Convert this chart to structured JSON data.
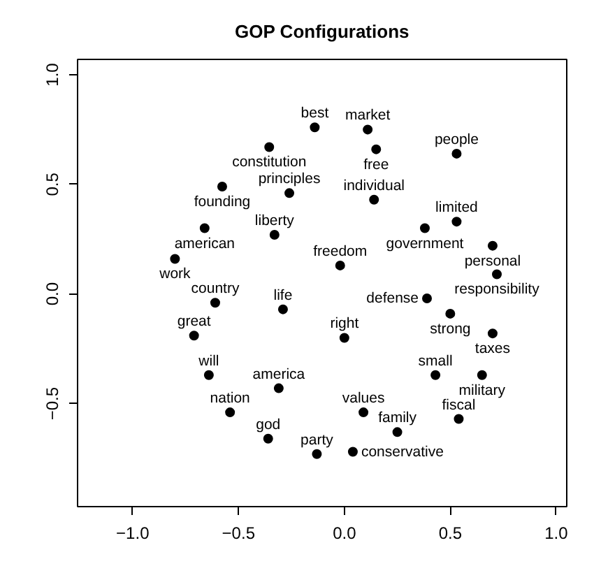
{
  "chart_data": {
    "type": "scatter",
    "title": "GOP Configurations",
    "x": [
      -0.14,
      -0.355,
      -0.577,
      -0.26,
      -0.66,
      -0.33,
      -0.8,
      -0.02,
      0.11,
      0.15,
      0.53,
      0.14,
      0.38,
      0.53,
      0.7,
      0.72,
      0.39,
      0.5,
      0.7,
      0.0,
      0.43,
      0.65,
      0.09,
      0.54,
      0.25,
      0.04,
      -0.13,
      -0.61,
      -0.29,
      -0.71,
      -0.64,
      -0.31,
      -0.54,
      -0.36
    ],
    "series": [
      {
        "color": "#000000",
        "values": [
          0.76,
          0.67,
          0.49,
          0.46,
          0.3,
          0.27,
          0.16,
          0.13,
          0.75,
          0.66,
          0.64,
          0.43,
          0.3,
          0.33,
          0.22,
          0.09,
          -0.02,
          -0.09,
          -0.18,
          -0.2,
          -0.37,
          -0.37,
          -0.54,
          -0.57,
          -0.63,
          -0.72,
          -0.73,
          -0.04,
          -0.07,
          -0.19,
          -0.37,
          -0.43,
          -0.54,
          -0.66
        ]
      }
    ],
    "annotations": [
      {
        "text": "best",
        "x": -0.14,
        "y": 0.76
      },
      {
        "text": "constitution",
        "x": -0.355,
        "y": 0.67
      },
      {
        "text": "founding",
        "x": -0.577,
        "y": 0.49
      },
      {
        "text": "principles",
        "x": -0.26,
        "y": 0.46
      },
      {
        "text": "american",
        "x": -0.66,
        "y": 0.3
      },
      {
        "text": "liberty",
        "x": -0.33,
        "y": 0.27
      },
      {
        "text": "work",
        "x": -0.8,
        "y": 0.16
      },
      {
        "text": "freedom",
        "x": -0.02,
        "y": 0.13
      },
      {
        "text": "market",
        "x": 0.11,
        "y": 0.75
      },
      {
        "text": "free",
        "x": 0.15,
        "y": 0.66
      },
      {
        "text": "people",
        "x": 0.53,
        "y": 0.64
      },
      {
        "text": "individual",
        "x": 0.14,
        "y": 0.43
      },
      {
        "text": "government",
        "x": 0.38,
        "y": 0.3
      },
      {
        "text": "limited",
        "x": 0.53,
        "y": 0.33
      },
      {
        "text": "personal",
        "x": 0.7,
        "y": 0.22
      },
      {
        "text": "responsibility",
        "x": 0.72,
        "y": 0.09
      },
      {
        "text": "defense",
        "x": 0.39,
        "y": -0.02
      },
      {
        "text": "strong",
        "x": 0.5,
        "y": -0.09
      },
      {
        "text": "taxes",
        "x": 0.7,
        "y": -0.18
      },
      {
        "text": "right",
        "x": 0.0,
        "y": -0.2
      },
      {
        "text": "small",
        "x": 0.43,
        "y": -0.37
      },
      {
        "text": "military",
        "x": 0.65,
        "y": -0.37
      },
      {
        "text": "values",
        "x": 0.09,
        "y": -0.54
      },
      {
        "text": "fiscal",
        "x": 0.54,
        "y": -0.57
      },
      {
        "text": "family",
        "x": 0.25,
        "y": -0.63
      },
      {
        "text": "conservative",
        "x": 0.04,
        "y": -0.72
      },
      {
        "text": "party",
        "x": -0.13,
        "y": -0.73
      },
      {
        "text": "country",
        "x": -0.61,
        "y": -0.04
      },
      {
        "text": "life",
        "x": -0.29,
        "y": -0.07
      },
      {
        "text": "great",
        "x": -0.71,
        "y": -0.19
      },
      {
        "text": "will",
        "x": -0.64,
        "y": -0.37
      },
      {
        "text": "america",
        "x": -0.31,
        "y": -0.43
      },
      {
        "text": "nation",
        "x": -0.54,
        "y": -0.54
      },
      {
        "text": "god",
        "x": -0.36,
        "y": -0.66
      }
    ],
    "xlim": [
      -1.26,
      1.05
    ],
    "ylim": [
      -0.97,
      1.07
    ],
    "xticks": [
      {
        "value": -1.0,
        "label": "−1.0"
      },
      {
        "value": -0.5,
        "label": "−0.5"
      },
      {
        "value": 0.0,
        "label": "0.0"
      },
      {
        "value": 0.5,
        "label": "0.5"
      },
      {
        "value": 1.0,
        "label": "1.0"
      }
    ],
    "yticks": [
      {
        "value": -0.5,
        "label": "−0.5"
      },
      {
        "value": 0.0,
        "label": "0.0"
      },
      {
        "value": 0.5,
        "label": "0.5"
      },
      {
        "value": 1.0,
        "label": "1.0"
      }
    ],
    "grid": false,
    "marker": "circle"
  }
}
